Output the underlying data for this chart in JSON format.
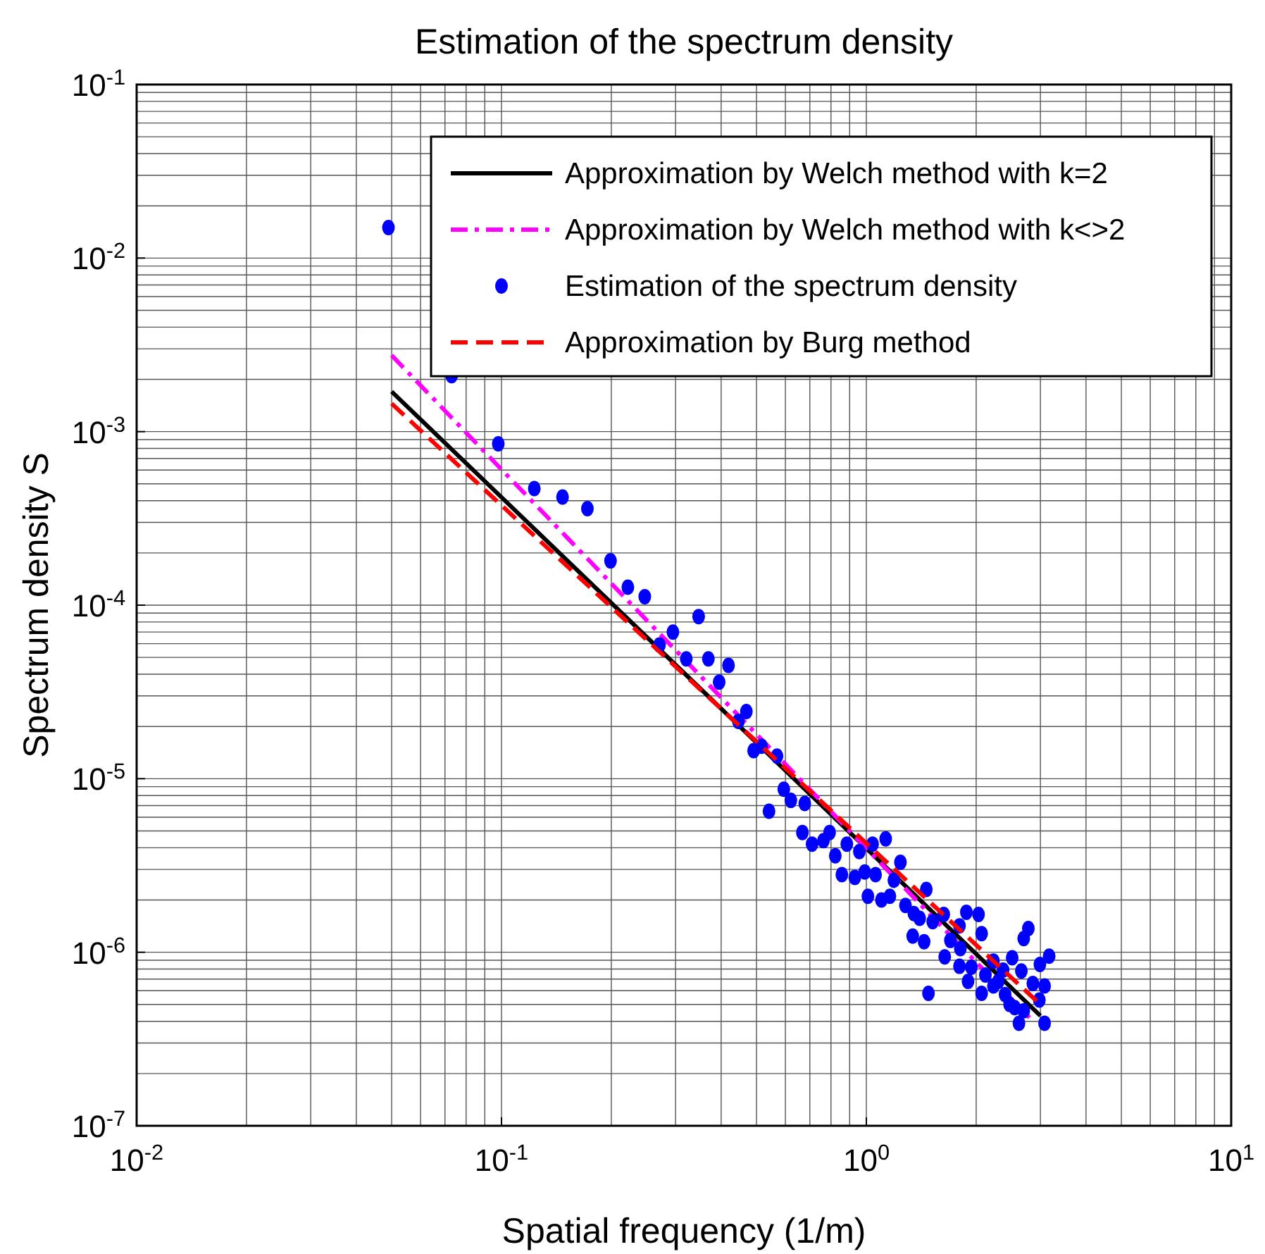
{
  "chart_data": {
    "type": "line",
    "title": "Estimation of the spectrum density",
    "xlabel": "Spatial frequency (1/m)",
    "ylabel": "Spectrum density S",
    "log": "xy",
    "grid": true,
    "legend": "top right",
    "xlim": [
      0.01,
      10
    ],
    "ylim": [
      1e-07,
      0.1
    ],
    "xticks": [
      {
        "value": 0.01,
        "label": "10$^{-2}$"
      },
      {
        "value": 0.1,
        "label": "10$^{-1}$"
      },
      {
        "value": 1,
        "label": "10$^{0}$"
      },
      {
        "value": 10,
        "label": "10$^{1}$"
      }
    ],
    "yticks": [
      {
        "value": 1e-07,
        "label": "10$^{-7}$"
      },
      {
        "value": 1e-06,
        "label": "10$^{-6}$"
      },
      {
        "value": 1e-05,
        "label": "10$^{-5}$"
      },
      {
        "value": 0.0001,
        "label": "10$^{-4}$"
      },
      {
        "value": 0.001,
        "label": "10$^{-3}$"
      },
      {
        "value": 0.01,
        "label": "10$^{-2}$"
      },
      {
        "value": 0.1,
        "label": "10$^{-1}$"
      }
    ],
    "series": [
      {
        "name": "Approximation by Welch method with k=2",
        "color": "#000000",
        "type": "line",
        "line_style": "solid",
        "x": [
          0.05,
          3
        ],
        "values": [
          0.0017,
          4.3e-07
        ]
      },
      {
        "name": "Approximation by Welch method with k<>2",
        "color": "#ff00ff",
        "type": "line",
        "line_style": "dashdot",
        "x": [
          0.05,
          2.8
        ],
        "values": [
          0.00275,
          4.2e-07
        ]
      },
      {
        "name": "Estimation of the spectrum density",
        "color": "#0000ff",
        "type": "scatter",
        "marker": "circle",
        "x": [
          0.049,
          0.073,
          0.098,
          0.123,
          0.147,
          0.172,
          0.199,
          0.222,
          0.247,
          0.347,
          0.295,
          0.271,
          0.321,
          0.369,
          0.419,
          0.395,
          0.469,
          0.446,
          0.516,
          0.491,
          0.569,
          0.594,
          0.621,
          0.678,
          0.541,
          0.668,
          0.71,
          0.763,
          0.793,
          0.822,
          0.884,
          0.957,
          1.04,
          1.13,
          0.857,
          0.93,
          0.99,
          1.06,
          1.01,
          1.1,
          1.16,
          1.24,
          1.19,
          1.28,
          1.35,
          1.46,
          1.4,
          1.34,
          1.44,
          1.52,
          1.63,
          1.8,
          1.88,
          2.03,
          2.07,
          1.7,
          1.64,
          1.81,
          1.8,
          1.94,
          1.9,
          2.07,
          1.48,
          2.12,
          2.23,
          2.3,
          2.4,
          2.51,
          2.55,
          2.62,
          2.7,
          2.66,
          2.7,
          2.78,
          2.86,
          2.99,
          3.17,
          3.08,
          2.98,
          3.08,
          2.37,
          2.47,
          2.23
        ],
        "values": [
          0.015,
          0.0021,
          0.00085,
          0.00047,
          0.00042,
          0.00036,
          0.00018,
          0.000127,
          0.000112,
          8.6e-05,
          7e-05,
          5.9e-05,
          4.9e-05,
          4.9e-05,
          4.5e-05,
          3.6e-05,
          2.44e-05,
          2.14e-05,
          1.54e-05,
          1.45e-05,
          1.35e-05,
          8.7e-06,
          7.5e-06,
          7.2e-06,
          6.5e-06,
          4.9e-06,
          4.2e-06,
          4.4e-06,
          4.9e-06,
          3.6e-06,
          4.2e-06,
          3.8e-06,
          4.2e-06,
          4.5e-06,
          2.8e-06,
          2.7e-06,
          2.9e-06,
          2.8e-06,
          2.1e-06,
          2e-06,
          2.1e-06,
          3.3e-06,
          2.6e-06,
          1.86e-06,
          1.67e-06,
          2.3e-06,
          1.57e-06,
          1.24e-06,
          1.15e-06,
          1.5e-06,
          1.65e-06,
          1.42e-06,
          1.7e-06,
          1.65e-06,
          1.28e-06,
          1.17e-06,
          9.4e-07,
          1.05e-06,
          8.3e-07,
          8.2e-07,
          6.8e-07,
          5.8e-07,
          5.8e-07,
          7.4e-07,
          8.9e-07,
          6.8e-07,
          5.7e-07,
          9.3e-07,
          4.8e-07,
          3.9e-07,
          4.6e-07,
          7.8e-07,
          1.2e-06,
          1.37e-06,
          6.6e-07,
          8.5e-07,
          9.5e-07,
          6.4e-07,
          5.3e-07,
          3.9e-07,
          7.9e-07,
          5e-07,
          6.4e-07
        ]
      },
      {
        "name": "Approximation by Burg method",
        "color": "#ff0000",
        "type": "line",
        "line_style": "dashed",
        "x": [
          0.05,
          3
        ],
        "values": [
          0.00145,
          5e-07
        ]
      }
    ]
  }
}
